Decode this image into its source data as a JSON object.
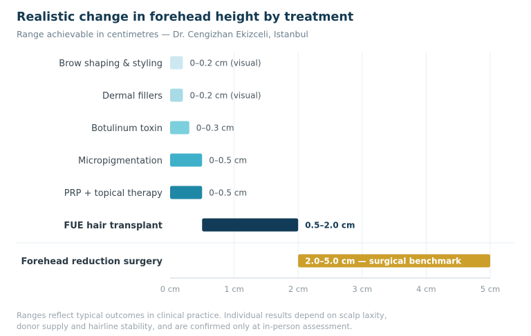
{
  "header": {
    "title": "Realistic change in forehead height by treatment",
    "subtitle": "Range achievable in centimetres — Dr. Cengizhan Ekizceli, Istanbul"
  },
  "footnote": {
    "line1": "Ranges reflect typical outcomes in clinical practice. Individual results depend on scalp laxity,",
    "line2": "donor supply and hairline stability, and are confirmed only at in-person assessment."
  },
  "chart_data": {
    "type": "bar",
    "orientation": "horizontal",
    "x_unit": "cm",
    "xlim": [
      0,
      5
    ],
    "x_ticks": [
      0,
      1,
      2,
      3,
      4,
      5
    ],
    "x_tick_labels": [
      "0 cm",
      "1 cm",
      "2 cm",
      "3 cm",
      "4 cm",
      "5 cm"
    ],
    "grid": true,
    "categories": [
      "Brow shaping & styling",
      "Dermal fillers",
      "Botulinum toxin",
      "Micropigmentation",
      "PRP + topical therapy",
      "FUE hair transplant",
      "Forehead reduction surgery"
    ],
    "bars": [
      {
        "start": 0,
        "end": 0.2,
        "label": "0–0.2 cm (visual)",
        "color": "#cde8f0",
        "emphasis": false
      },
      {
        "start": 0,
        "end": 0.2,
        "label": "0–0.2 cm (visual)",
        "color": "#a9dbe6",
        "emphasis": false
      },
      {
        "start": 0,
        "end": 0.3,
        "label": "0–0.3 cm",
        "color": "#7ccfdd",
        "emphasis": false
      },
      {
        "start": 0,
        "end": 0.5,
        "label": "0–0.5 cm",
        "color": "#3fb0c9",
        "emphasis": false
      },
      {
        "start": 0,
        "end": 0.5,
        "label": "0–0.5 cm",
        "color": "#1f87a6",
        "emphasis": false
      },
      {
        "start": 0.5,
        "end": 2.0,
        "label": "0.5–2.0 cm",
        "color": "#123b57",
        "emphasis": true
      },
      {
        "start": 2.0,
        "end": 5.0,
        "label": "2.0–5.0 cm — surgical benchmark",
        "color": "#cc9f2b",
        "emphasis": true,
        "label_inside": true
      }
    ],
    "separator_before_last": true
  }
}
